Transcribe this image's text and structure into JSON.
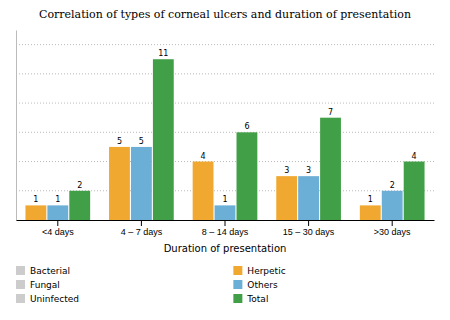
{
  "chart_data": {
    "type": "bar",
    "title": "Correlation of types of corneal ulcers and duration of presentation",
    "xlabel": "Duration of presentation",
    "categories": [
      "<4 days",
      "4 – 7 days",
      "8 – 14 days",
      "15 – 30 days",
      ">30 days"
    ],
    "series": [
      {
        "name": "Herpetic",
        "color": "#f0a830",
        "values": [
          1,
          5,
          4,
          3,
          1
        ]
      },
      {
        "name": "Others",
        "color": "#6baed6",
        "values": [
          1,
          5,
          1,
          3,
          2
        ]
      },
      {
        "name": "Total",
        "color": "#41a047",
        "values": [
          2,
          11,
          6,
          7,
          4
        ]
      },
      {
        "name": "Bacterial",
        "color": "#cccccc",
        "values": [
          null,
          null,
          null,
          null,
          null
        ]
      },
      {
        "name": "Fungal",
        "color": "#cccccc",
        "values": [
          null,
          null,
          null,
          null,
          null
        ]
      },
      {
        "name": "Uninfected",
        "color": "#cccccc",
        "values": [
          null,
          null,
          null,
          null,
          null
        ]
      }
    ],
    "ylim": [
      0,
      13
    ],
    "yticks": [
      2,
      4,
      6,
      8,
      10,
      12
    ],
    "grid": true,
    "tick_labels": "x",
    "data_labels": true,
    "legend": "bottom"
  }
}
